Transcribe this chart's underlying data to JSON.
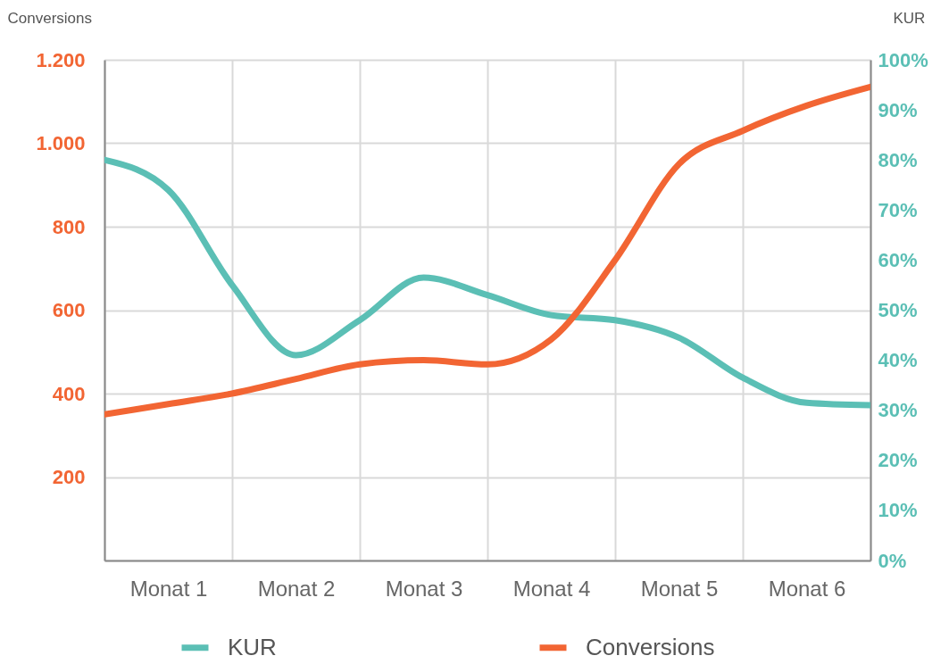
{
  "chart_data": {
    "type": "line",
    "ylabel": "Conversions",
    "y2label": "KUR",
    "categories": [
      null,
      "Monat 1",
      null,
      "Monat 2",
      null,
      "Monat 3",
      null,
      "Monat 4",
      null,
      "Monat 5",
      null,
      "Monat 6",
      null
    ],
    "ylim": [
      0,
      1200
    ],
    "yticks": [
      {
        "value": 0,
        "label": null
      },
      200,
      400,
      600,
      800,
      {
        "value": 1000,
        "label": "1.000"
      },
      {
        "value": 1200,
        "label": "1.200"
      }
    ],
    "y2lim": [
      0,
      100
    ],
    "y2ticks": [
      {
        "value": 0,
        "label": "0%"
      },
      {
        "value": 10,
        "label": "10%"
      },
      {
        "value": 20,
        "label": "20%"
      },
      {
        "value": 30,
        "label": "30%"
      },
      {
        "value": 40,
        "label": "40%"
      },
      {
        "value": 50,
        "label": "50%"
      },
      {
        "value": 60,
        "label": "60%"
      },
      {
        "value": 70,
        "label": "70%"
      },
      {
        "value": 80,
        "label": "80%"
      },
      {
        "value": 90,
        "label": "90%"
      },
      {
        "value": 100,
        "label": "100%"
      }
    ],
    "grid": true,
    "legend": "bottom",
    "series": [
      {
        "name": "KUR",
        "color": "#5bbfb5",
        "axis": "y2",
        "values": [
          80,
          74,
          55,
          41,
          48,
          56.5,
          53,
          49,
          48,
          44.5,
          36.5,
          31.5,
          31
        ]
      },
      {
        "name": "Conversions",
        "color": "#f26533",
        "axis": "y",
        "values": [
          350,
          375,
          400,
          435,
          470,
          480,
          470,
          530,
          720,
          950,
          1030,
          1090,
          1135
        ]
      }
    ]
  }
}
